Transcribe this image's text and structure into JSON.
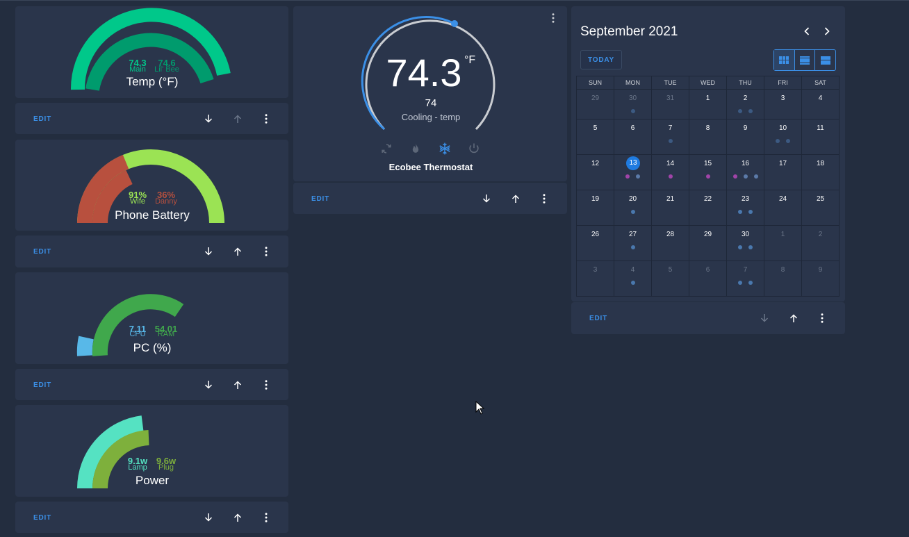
{
  "gauges": [
    {
      "title": "Temp (°F)",
      "values": [
        {
          "value": "74.3",
          "label": "Main",
          "color": "#00c88a"
        },
        {
          "value": "74.6",
          "label": "Lil' Bee",
          "color": "#009b6d"
        }
      ]
    },
    {
      "title": "Phone Battery",
      "values": [
        {
          "value": "91%",
          "label": "Wife",
          "color": "#9be354"
        },
        {
          "value": "36%",
          "label": "Danny",
          "color": "#b8503e"
        }
      ]
    },
    {
      "title": "PC (%)",
      "values": [
        {
          "value": "7.11",
          "label": "CPU",
          "color": "#58b8e8"
        },
        {
          "value": "54.01",
          "label": "RAM",
          "color": "#40a84c"
        }
      ]
    },
    {
      "title": "Power",
      "values": [
        {
          "value": "9.1w",
          "label": "Lamp",
          "color": "#55e2c2"
        },
        {
          "value": "9.6w",
          "label": "Plug",
          "color": "#7eb03c"
        }
      ]
    }
  ],
  "card_actions": {
    "edit_label": "EDIT"
  },
  "thermostat": {
    "current": "74.3",
    "unit": "°F",
    "setpoint": "74",
    "mode_text": "Cooling - temp",
    "name": "Ecobee Thermostat",
    "modes": [
      "auto-icon",
      "heat-flame-icon",
      "cool-snowflake-icon",
      "power-icon"
    ],
    "active_mode": "cool-snowflake-icon",
    "accent": "#3b8fe6"
  },
  "calendar": {
    "title": "September 2021",
    "today_label": "TODAY",
    "weekdays": [
      "SUN",
      "MON",
      "TUE",
      "WED",
      "THU",
      "FRI",
      "SAT"
    ],
    "today": "13",
    "weeks": [
      [
        {
          "d": "29",
          "o": 1
        },
        {
          "d": "30",
          "o": 1,
          "e": [
            "#3c5a82"
          ]
        },
        {
          "d": "31",
          "o": 1
        },
        {
          "d": "1"
        },
        {
          "d": "2",
          "e": [
            "#3c5a82",
            "#3c5a82"
          ]
        },
        {
          "d": "3"
        },
        {
          "d": "4"
        }
      ],
      [
        {
          "d": "5"
        },
        {
          "d": "6"
        },
        {
          "d": "7",
          "e": [
            "#3c5a82"
          ]
        },
        {
          "d": "8"
        },
        {
          "d": "9"
        },
        {
          "d": "10",
          "e": [
            "#3c5a82",
            "#3c5a82"
          ]
        },
        {
          "d": "11"
        }
      ],
      [
        {
          "d": "12"
        },
        {
          "d": "13",
          "t": 1,
          "e": [
            "#a044a8",
            "#5b7aa8"
          ]
        },
        {
          "d": "14",
          "e": [
            "#a044a8"
          ]
        },
        {
          "d": "15",
          "e": [
            "#a044a8"
          ]
        },
        {
          "d": "16",
          "e": [
            "#a044a8",
            "#5b7aa8",
            "#5b7aa8"
          ]
        },
        {
          "d": "17"
        },
        {
          "d": "18"
        }
      ],
      [
        {
          "d": "19"
        },
        {
          "d": "20",
          "e": [
            "#4a78ad"
          ]
        },
        {
          "d": "21"
        },
        {
          "d": "22"
        },
        {
          "d": "23",
          "e": [
            "#4a78ad",
            "#4a78ad"
          ]
        },
        {
          "d": "24"
        },
        {
          "d": "25"
        }
      ],
      [
        {
          "d": "26"
        },
        {
          "d": "27",
          "e": [
            "#4a78ad"
          ]
        },
        {
          "d": "28"
        },
        {
          "d": "29"
        },
        {
          "d": "30",
          "e": [
            "#4a78ad",
            "#4a78ad"
          ]
        },
        {
          "d": "1",
          "o": 1
        },
        {
          "d": "2",
          "o": 1
        }
      ],
      [
        {
          "d": "3",
          "o": 1
        },
        {
          "d": "4",
          "o": 1,
          "e": [
            "#4a78ad"
          ]
        },
        {
          "d": "5",
          "o": 1
        },
        {
          "d": "6",
          "o": 1
        },
        {
          "d": "7",
          "o": 1,
          "e": [
            "#4a78ad",
            "#4a78ad"
          ]
        },
        {
          "d": "8",
          "o": 1
        },
        {
          "d": "9",
          "o": 1
        }
      ]
    ]
  }
}
